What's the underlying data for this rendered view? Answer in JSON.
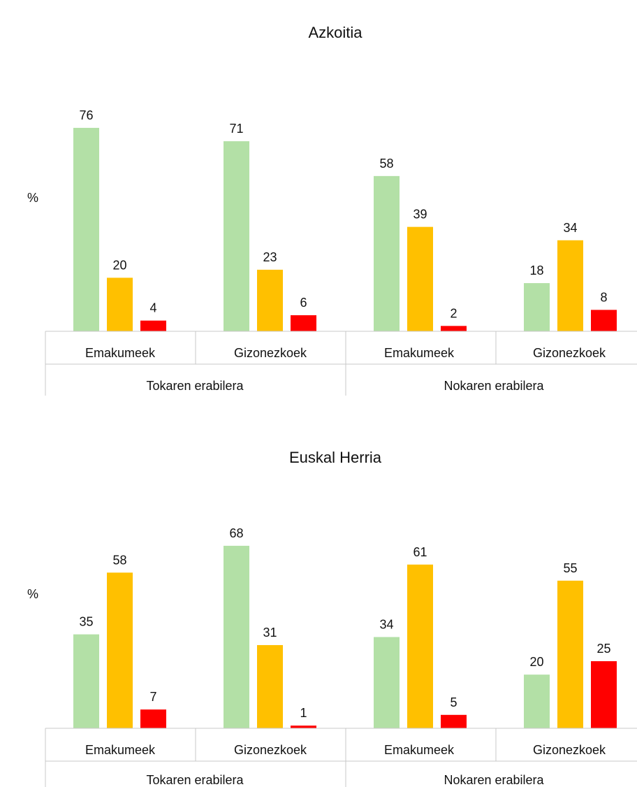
{
  "chart_data": [
    {
      "type": "bar",
      "title": "Azkoitia",
      "ylabel": "%",
      "ylim": [
        0,
        80
      ],
      "groups": [
        "Tokaren erabilera",
        "Nokaren erabilera"
      ],
      "categories": [
        "Emakumeek",
        "Gizonezkoek",
        "Emakumeek",
        "Gizonezkoek"
      ],
      "series": [
        {
          "color": "#b3e0a6",
          "values": [
            76,
            71,
            58,
            18
          ]
        },
        {
          "color": "#ffc000",
          "values": [
            20,
            23,
            39,
            34
          ]
        },
        {
          "color": "#ff0000",
          "values": [
            4,
            6,
            2,
            8
          ]
        }
      ],
      "grid": false
    },
    {
      "type": "bar",
      "title": "Euskal Herria",
      "ylabel": "%",
      "ylim": [
        0,
        80
      ],
      "groups": [
        "Tokaren erabilera",
        "Nokaren erabilera"
      ],
      "categories": [
        "Emakumeek",
        "Gizonezkoek",
        "Emakumeek",
        "Gizonezkoek"
      ],
      "series": [
        {
          "color": "#b3e0a6",
          "values": [
            35,
            68,
            34,
            20
          ]
        },
        {
          "color": "#ffc000",
          "values": [
            58,
            31,
            61,
            55
          ]
        },
        {
          "color": "#ff0000",
          "values": [
            7,
            1,
            5,
            25
          ]
        }
      ],
      "grid": false
    }
  ]
}
